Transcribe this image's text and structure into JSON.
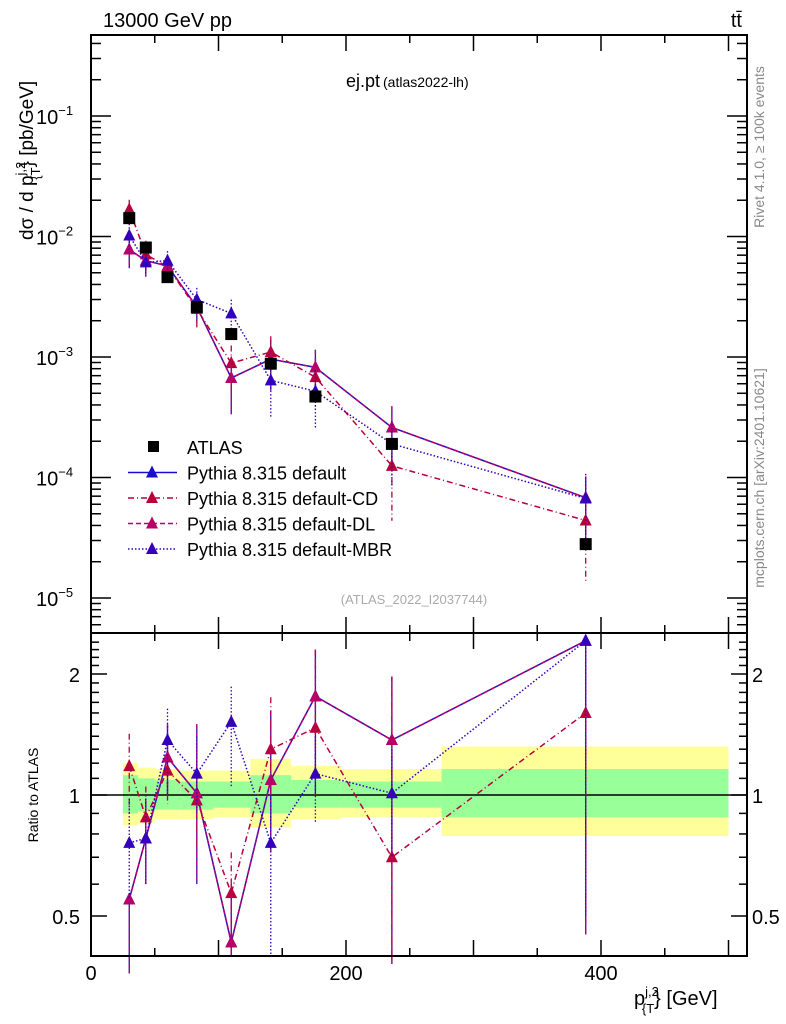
{
  "header": {
    "energy_label": "13000 GeV pp",
    "process_label": "tt̄",
    "plot_title": "ej.pt",
    "plot_subtitle": "(atlas2022-lh)",
    "analysis_id": "(ATLAS_2022_I2037744)",
    "side_label_top": "Rivet 4.1.0, ≥ 100k events",
    "side_label_bottom": "mcplots.cern.ch [arXiv:2401.10621]"
  },
  "colors": {
    "atlas": "#000000",
    "default": "#1a0dcc",
    "cd": "#b8003a",
    "dl": "#b80066",
    "mbr": "#3300bb",
    "band_inner": "#99ff99",
    "band_outer": "#ffff99"
  },
  "chart_data": [
    {
      "type": "scatter",
      "title": "ej.pt (atlas2022-lh)",
      "xlabel": "p_{T}^{j,2} [GeV]",
      "ylabel": "dσ / d p_{T}^{j,2} [pb/GeV]",
      "yscale": "log",
      "ylim": [
        5e-06,
        0.5
      ],
      "xlim": [
        0,
        510
      ],
      "x_ticks": [
        "0",
        "200",
        "400"
      ],
      "y_ticks": [
        "10^-1",
        "10^-2",
        "10^-3",
        "10^-4",
        "10^-5"
      ],
      "legend_position": "bottom-left",
      "x": [
        30,
        43,
        60,
        83,
        110,
        141,
        176,
        236,
        388
      ],
      "series": [
        {
          "name": "ATLAS",
          "marker": "square",
          "values": [
            0.0142,
            0.0081,
            0.0046,
            0.0026,
            0.00155,
            0.00088,
            0.00047,
            0.00019,
            2.8e-05
          ]
        },
        {
          "name": "Pythia 8.315 default",
          "marker": "triangle",
          "line": "solid",
          "values": [
            0.0078,
            0.0063,
            0.0057,
            0.0026,
            0.00067,
            0.00096,
            0.00082,
            0.00026,
            6.8e-05
          ],
          "err": [
            0.3,
            0.25,
            0.2,
            0.25,
            0.5,
            0.45,
            0.4,
            0.5,
            0.5
          ]
        },
        {
          "name": "Pythia 8.315 default-CD",
          "marker": "triangle",
          "line": "dashdot",
          "values": [
            0.0168,
            0.0071,
            0.0056,
            0.0025,
            0.00089,
            0.0011,
            0.00068,
            0.000125,
            4.4e-05
          ],
          "err": [
            0.2,
            0.3,
            0.2,
            0.3,
            0.4,
            0.35,
            0.45,
            0.65,
            0.7
          ]
        },
        {
          "name": "Pythia 8.315 default-DL",
          "marker": "triangle",
          "line": "dashed",
          "values": [
            0.0078,
            0.0063,
            0.0057,
            0.0026,
            0.00067,
            0.00096,
            0.00082,
            0.00026,
            6.8e-05
          ],
          "err": [
            0.3,
            0.25,
            0.2,
            0.25,
            0.5,
            0.45,
            0.4,
            0.5,
            0.5
          ]
        },
        {
          "name": "Pythia 8.315 default-MBR",
          "marker": "triangle",
          "line": "dotted",
          "values": [
            0.0102,
            0.0061,
            0.0063,
            0.003,
            0.0023,
            0.00064,
            0.00052,
            0.00019,
            6.7e-05
          ],
          "err": [
            0.25,
            0.25,
            0.2,
            0.25,
            0.3,
            0.5,
            0.5,
            0.55,
            0.6
          ]
        }
      ]
    },
    {
      "type": "scatter",
      "title": "",
      "xlabel": "p_{T}^{j,2} [GeV]",
      "ylabel": "Ratio to ATLAS",
      "yscale": "log",
      "ylim": [
        0.43,
        2.45
      ],
      "y_ticks": [
        "0.5",
        "1",
        "2"
      ],
      "x": [
        30,
        43,
        60,
        83,
        110,
        141,
        176,
        236,
        388
      ],
      "bins": [
        [
          25,
          37
        ],
        [
          37,
          50
        ],
        [
          50,
          70
        ],
        [
          70,
          96
        ],
        [
          96,
          125
        ],
        [
          125,
          157
        ],
        [
          157,
          196
        ],
        [
          196,
          275
        ],
        [
          275,
          500
        ]
      ],
      "band_inner": [
        [
          0.9,
          1.12
        ],
        [
          0.91,
          1.1
        ],
        [
          0.92,
          1.09
        ],
        [
          0.92,
          1.08
        ],
        [
          0.93,
          1.08
        ],
        [
          0.9,
          1.12
        ],
        [
          0.93,
          1.09
        ],
        [
          0.93,
          1.08
        ],
        [
          0.88,
          1.16
        ]
      ],
      "band_outer": [
        [
          0.84,
          1.2
        ],
        [
          0.85,
          1.17
        ],
        [
          0.87,
          1.16
        ],
        [
          0.87,
          1.15
        ],
        [
          0.88,
          1.15
        ],
        [
          0.83,
          1.23
        ],
        [
          0.87,
          1.18
        ],
        [
          0.88,
          1.16
        ],
        [
          0.79,
          1.32
        ]
      ],
      "series": [
        {
          "name": "Pythia 8.315 default",
          "values": [
            0.55,
            0.78,
            1.24,
            1.01,
            0.43,
            1.09,
            1.76,
            1.37,
            2.42
          ],
          "err_lo": [
            0.36,
            0.6,
            1.0,
            0.6,
            0.4,
            0.72,
            1.0,
            0.38,
            0.45
          ],
          "err_hi": [
            0.55,
            0.98,
            1.5,
            1.5,
            0.6,
            1.62,
            2.3,
            1.97,
            2.42
          ]
        },
        {
          "name": "Pythia 8.315 default-CD",
          "values": [
            1.18,
            0.88,
            1.15,
            0.97,
            0.57,
            1.3,
            1.47,
            0.7,
            1.6
          ],
          "err_lo": [
            0.9,
            0.75,
            0.95,
            0.72,
            0.4,
            1.0,
            1.1,
            0.38,
            0.45
          ],
          "err_hi": [
            1.42,
            1.05,
            1.35,
            1.22,
            0.72,
            1.75,
            2.3,
            1.97,
            1.62
          ]
        },
        {
          "name": "Pythia 8.315 default-DL",
          "values": [
            0.55,
            0.78,
            1.24,
            1.01,
            0.43,
            1.09,
            1.76,
            1.37,
            2.42
          ],
          "err_lo": [
            0.36,
            0.6,
            1.0,
            0.6,
            0.4,
            0.72,
            1.0,
            0.38,
            0.45
          ],
          "err_hi": [
            0.55,
            0.98,
            1.5,
            1.5,
            0.6,
            1.62,
            2.3,
            1.97,
            2.42
          ]
        },
        {
          "name": "Pythia 8.315 default-MBR",
          "values": [
            0.76,
            0.78,
            1.37,
            1.13,
            1.52,
            0.76,
            1.13,
            1.01,
            2.42
          ],
          "err_lo": [
            0.55,
            0.6,
            1.0,
            0.9,
            1.05,
            0.4,
            0.85,
            0.7,
            0.5
          ],
          "err_hi": [
            0.98,
            1.0,
            1.64,
            1.4,
            1.86,
            1.0,
            1.4,
            1.3,
            2.42
          ]
        }
      ]
    }
  ]
}
